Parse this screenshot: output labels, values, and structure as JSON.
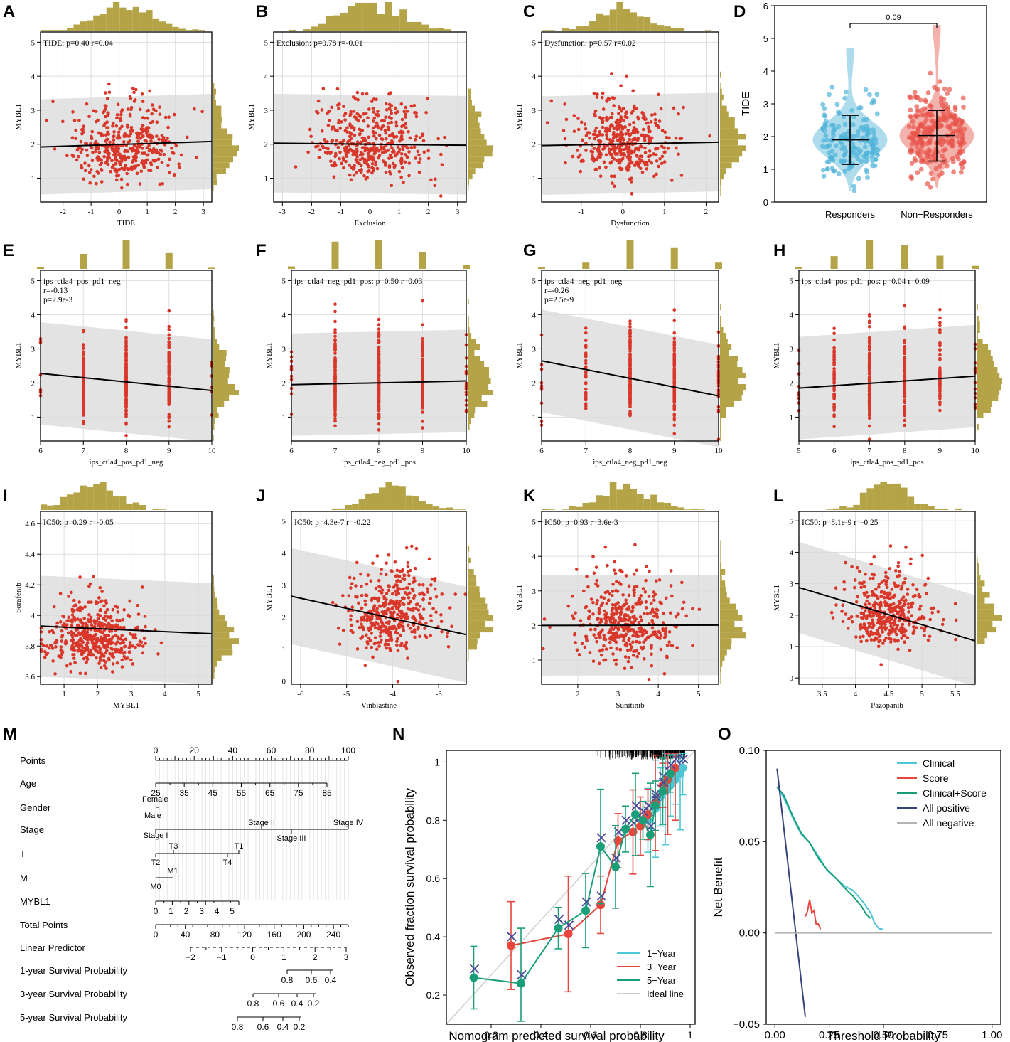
{
  "figure": {
    "colors": {
      "point": "#d9372a",
      "band": "#d9d9d9",
      "hist": "#b5a447",
      "grid": "#dddddd",
      "responders": "#4fb3d9",
      "nonresponders": "#e8564c",
      "cal_1yr": "#4cc7d6",
      "cal_3yr": "#e8453c",
      "cal_5yr": "#1a9e7a",
      "cal_ideal": "#cccccc",
      "cal_cross": "#4a4a9a",
      "dca_all_pos": "#35437a",
      "dca_all_neg": "#b3b3b3"
    }
  },
  "chart_data": [
    {
      "id": "A",
      "panel": "A",
      "type": "scatter",
      "annotation": "TIDE: p=0.40 r=0.04",
      "xlabel": "TIDE",
      "ylabel": "MYBL1",
      "xlim": [
        -2.8,
        3.3
      ],
      "ylim": [
        0.3,
        5.3
      ],
      "xticks": [
        -2,
        -1,
        0,
        1,
        2,
        3
      ],
      "yticks": [
        1,
        2,
        3,
        4,
        5
      ],
      "fit": {
        "x0": -2.8,
        "y0": 1.92,
        "x1": 3.3,
        "y1": 2.08,
        "band": 1.4
      },
      "x_dist": {
        "mean": 0.2,
        "sd": 0.95
      },
      "y_dist": {
        "mean": 1.9,
        "sd": 0.7
      },
      "n": 420,
      "hist_top": true,
      "hist_right": true,
      "discrete_x": []
    },
    {
      "id": "B",
      "panel": "B",
      "type": "scatter",
      "annotation": "Exclusion: p=0.78 r=-0.01",
      "xlabel": "Exclusion",
      "ylabel": "MYBL1",
      "xlim": [
        -3.3,
        3.3
      ],
      "ylim": [
        0.3,
        5.3
      ],
      "xticks": [
        -3,
        -2,
        -1,
        0,
        1,
        2,
        3
      ],
      "yticks": [
        1,
        2,
        3,
        4,
        5
      ],
      "fit": {
        "x0": -3.3,
        "y0": 2.03,
        "x1": 3.3,
        "y1": 1.97,
        "band": 1.45
      },
      "x_dist": {
        "mean": 0.0,
        "sd": 1.0
      },
      "y_dist": {
        "mean": 1.95,
        "sd": 0.7
      },
      "n": 420,
      "hist_top": true,
      "hist_right": true,
      "discrete_x": []
    },
    {
      "id": "C",
      "panel": "C",
      "type": "scatter",
      "annotation": "Dysfunction: p=0.57 r=0.02",
      "xlabel": "Dysfunction",
      "ylabel": "MYBL1",
      "xlim": [
        -1.95,
        2.3
      ],
      "ylim": [
        0.3,
        5.3
      ],
      "xticks": [
        -1,
        0,
        1,
        2
      ],
      "yticks": [
        1,
        2,
        3,
        4,
        5
      ],
      "fit": {
        "x0": -1.95,
        "y0": 1.96,
        "x1": 2.3,
        "y1": 2.06,
        "band": 1.45
      },
      "x_dist": {
        "mean": 0.0,
        "sd": 0.6
      },
      "y_dist": {
        "mean": 1.95,
        "sd": 0.7
      },
      "n": 420,
      "hist_top": true,
      "hist_right": true,
      "discrete_x": []
    },
    {
      "id": "E",
      "panel": "E",
      "type": "scatter",
      "annotation": "ips_ctla4_pos_pd1_neg",
      "annotation2": "r=-0.13",
      "annotation3": "p=2.9e-3",
      "xlabel": "ips_ctla4_pos_pd1_neg",
      "ylabel": "MYBL1",
      "xlim": [
        6,
        10
      ],
      "ylim": [
        0.3,
        5.3
      ],
      "xticks": [
        6,
        7,
        8,
        9,
        10
      ],
      "yticks": [
        1,
        2,
        3,
        4,
        5
      ],
      "fit": {
        "x0": 6,
        "y0": 2.28,
        "x1": 10,
        "y1": 1.78,
        "band": 1.5
      },
      "x_dist": {
        "mean": 8,
        "sd": 1
      },
      "y_dist": {
        "mean": 2.0,
        "sd": 0.75
      },
      "n": 380,
      "hist_top": true,
      "hist_right": true,
      "discrete_x": [
        6,
        7,
        8,
        9,
        10
      ],
      "discrete_w": [
        0.02,
        0.28,
        0.42,
        0.24,
        0.04
      ]
    },
    {
      "id": "F",
      "panel": "F",
      "type": "scatter",
      "annotation": "ips_ctla4_neg_pd1_pos: p=0.50 r=0.03",
      "xlabel": "ips_ctla4_neg_pd1_pos",
      "ylabel": "MYBL1",
      "xlim": [
        6,
        10
      ],
      "ylim": [
        0.3,
        5.3
      ],
      "xticks": [
        6,
        7,
        8,
        9,
        10
      ],
      "yticks": [
        1,
        2,
        3,
        4,
        5
      ],
      "fit": {
        "x0": 6,
        "y0": 1.95,
        "x1": 10,
        "y1": 2.06,
        "band": 1.5
      },
      "x_dist": {
        "mean": 8,
        "sd": 1
      },
      "y_dist": {
        "mean": 2.0,
        "sd": 0.75
      },
      "n": 380,
      "hist_top": true,
      "hist_right": true,
      "discrete_x": [
        6,
        7,
        8,
        9,
        10
      ],
      "discrete_w": [
        0.03,
        0.34,
        0.4,
        0.19,
        0.04
      ]
    },
    {
      "id": "G",
      "panel": "G",
      "type": "scatter",
      "annotation": "ips_ctla4_neg_pd1_neg",
      "annotation2": "r=-0.26",
      "annotation3": "p=2.5e-9",
      "xlabel": "ips_ctla4_neg_pd1_neg",
      "ylabel": "MYBL1",
      "xlim": [
        6,
        10
      ],
      "ylim": [
        0.3,
        5.3
      ],
      "xticks": [
        6,
        7,
        8,
        9,
        10
      ],
      "yticks": [
        1,
        2,
        3,
        4,
        5
      ],
      "fit": {
        "x0": 6,
        "y0": 2.65,
        "x1": 10,
        "y1": 1.62,
        "band": 1.5
      },
      "x_dist": {
        "mean": 8,
        "sd": 1
      },
      "y_dist": {
        "mean": 2.0,
        "sd": 0.75
      },
      "n": 380,
      "hist_top": true,
      "hist_right": true,
      "discrete_x": [
        6,
        7,
        8,
        9,
        10
      ],
      "discrete_w": [
        0.02,
        0.12,
        0.45,
        0.33,
        0.08
      ]
    },
    {
      "id": "H",
      "panel": "H",
      "type": "scatter",
      "annotation": "ips_ctla4_pos_pd1_pos: p=0.04 r=0.09",
      "xlabel": "ips_ctla4_pos_pd1_pos",
      "ylabel": "MYBL1",
      "xlim": [
        5,
        10
      ],
      "ylim": [
        0.3,
        5.3
      ],
      "xticks": [
        5,
        6,
        7,
        8,
        9,
        10
      ],
      "yticks": [
        1,
        2,
        3,
        4,
        5
      ],
      "fit": {
        "x0": 5,
        "y0": 1.85,
        "x1": 10,
        "y1": 2.2,
        "band": 1.5
      },
      "x_dist": {
        "mean": 7.5,
        "sd": 1
      },
      "y_dist": {
        "mean": 2.0,
        "sd": 0.75
      },
      "n": 380,
      "hist_top": true,
      "hist_right": true,
      "discrete_x": [
        5,
        6,
        7,
        8,
        9,
        10
      ],
      "discrete_w": [
        0.02,
        0.14,
        0.38,
        0.3,
        0.14,
        0.02
      ]
    },
    {
      "id": "I",
      "panel": "I",
      "type": "scatter",
      "annotation": "IC50: p=0.29 r=-0.05",
      "xlabel": "MYBL1",
      "ylabel": "Sorafenib",
      "xlim": [
        0.3,
        5.4
      ],
      "ylim": [
        3.55,
        4.68
      ],
      "xticks": [
        1,
        2,
        3,
        4,
        5
      ],
      "yticks": [
        3.6,
        3.8,
        4.0,
        4.2,
        4.4,
        4.6
      ],
      "fit": {
        "x0": 0.3,
        "y0": 3.93,
        "x1": 5.4,
        "y1": 3.88,
        "band": 0.33
      },
      "x_dist": {
        "mean": 1.9,
        "sd": 0.75
      },
      "y_dist": {
        "mean": 3.85,
        "sd": 0.13
      },
      "n": 460,
      "hist_top": true,
      "hist_right": true,
      "discrete_x": []
    },
    {
      "id": "J",
      "panel": "J",
      "type": "scatter",
      "annotation": "IC50: p=4.3e-7 r=-0.22",
      "xlabel": "Vinblastine",
      "ylabel": "MYBL1",
      "xlim": [
        -6.2,
        -2.4
      ],
      "ylim": [
        -0.1,
        5.3
      ],
      "xticks": [
        -6,
        -5,
        -4,
        -3
      ],
      "yticks": [
        0,
        1,
        2,
        3,
        4,
        5
      ],
      "fit": {
        "x0": -6.2,
        "y0": 2.65,
        "x1": -2.4,
        "y1": 1.45,
        "band": 1.5
      },
      "x_dist": {
        "mean": -4.0,
        "sd": 0.5
      },
      "y_dist": {
        "mean": 2.0,
        "sd": 0.75
      },
      "n": 420,
      "hist_top": true,
      "hist_right": true,
      "discrete_x": []
    },
    {
      "id": "K",
      "panel": "K",
      "type": "scatter",
      "annotation": "IC50: p=0.93 r=3.6e-3",
      "xlabel": "Sunitinib",
      "ylabel": "MYBL1",
      "xlim": [
        1.1,
        5.5
      ],
      "ylim": [
        0.3,
        5.3
      ],
      "xticks": [
        2,
        3,
        4,
        5
      ],
      "yticks": [
        1,
        2,
        3,
        4,
        5
      ],
      "fit": {
        "x0": 1.1,
        "y0": 2.0,
        "x1": 5.5,
        "y1": 2.01,
        "band": 1.45
      },
      "x_dist": {
        "mean": 3.2,
        "sd": 0.65
      },
      "y_dist": {
        "mean": 2.0,
        "sd": 0.75
      },
      "n": 420,
      "hist_top": true,
      "hist_right": true,
      "discrete_x": []
    },
    {
      "id": "L",
      "panel": "L",
      "type": "scatter",
      "annotation": "IC50: p=8.1e-9 r=-0.25",
      "xlabel": "Pazopanib",
      "ylabel": "MYBL1",
      "xlim": [
        3.15,
        5.8
      ],
      "ylim": [
        -0.2,
        5.3
      ],
      "xticks": [
        3.5,
        4.0,
        4.5,
        5.0,
        5.5
      ],
      "yticks": [
        0,
        1,
        2,
        3,
        4,
        5
      ],
      "fit": {
        "x0": 3.15,
        "y0": 2.88,
        "x1": 5.8,
        "y1": 1.18,
        "band": 1.45
      },
      "x_dist": {
        "mean": 4.5,
        "sd": 0.3
      },
      "y_dist": {
        "mean": 2.0,
        "sd": 0.75
      },
      "n": 420,
      "hist_top": true,
      "hist_right": true,
      "discrete_x": []
    },
    {
      "id": "D",
      "panel": "D",
      "type": "violin",
      "ylabel": "TIDE",
      "ylim": [
        0,
        6
      ],
      "yticks": [
        0,
        1,
        2,
        3,
        4,
        5,
        6
      ],
      "categories": [
        "Responders",
        "Non−Responders"
      ],
      "groups": [
        {
          "name": "Responders",
          "mean": 1.9,
          "sd_low": 1.15,
          "sd_high": 2.65,
          "min": 0.35,
          "max": 4.7,
          "n": 170
        },
        {
          "name": "Non−Responders",
          "mean": 2.03,
          "sd_low": 1.25,
          "sd_high": 2.8,
          "min": 0.45,
          "max": 5.4,
          "n": 260
        }
      ],
      "comparison_p": "0.09"
    },
    {
      "id": "M",
      "panel": "M",
      "type": "nomogram",
      "rows": [
        {
          "label": "Points",
          "ticks": [
            0,
            10,
            20,
            30,
            40,
            50,
            60,
            70,
            80,
            90,
            100
          ],
          "labels": [
            "0",
            "20",
            "40",
            "60",
            "80",
            "100"
          ]
        },
        {
          "label": "Age",
          "ticks": [
            25,
            35,
            45,
            55,
            65,
            75,
            85
          ],
          "labels": [
            "25",
            "35",
            "45",
            "55",
            "65",
            "75",
            "85"
          ]
        },
        {
          "label": "Gender",
          "labels": [
            "Female",
            "Male"
          ]
        },
        {
          "label": "Stage",
          "labels": [
            "Stage I",
            "Stage II",
            "Stage III",
            "Stage IV"
          ]
        },
        {
          "label": "T",
          "labels": [
            "T2",
            "T3",
            "T4",
            "T1"
          ]
        },
        {
          "label": "M",
          "labels": [
            "M0",
            "M1"
          ]
        },
        {
          "label": "MYBL1",
          "labels": [
            "0",
            "1",
            "2",
            "3",
            "4",
            "5"
          ]
        },
        {
          "label": "Total Points",
          "labels": [
            "0",
            "40",
            "80",
            "120",
            "160",
            "200",
            "240"
          ]
        },
        {
          "label": "Linear Predictor",
          "labels": [
            "−2",
            "−1",
            "0",
            "1",
            "2",
            "3"
          ]
        },
        {
          "label": "1-year Survival Probability",
          "labels": [
            "0.8",
            "0.6",
            "0.4"
          ]
        },
        {
          "label": "3-year Survival Probability",
          "labels": [
            "0.8",
            "0.6",
            "0.4",
            "0.2"
          ]
        },
        {
          "label": "5-year Survival Probability",
          "labels": [
            "0.8",
            "0.6",
            "0.4",
            "0.2"
          ]
        }
      ]
    },
    {
      "id": "N",
      "panel": "N",
      "type": "line",
      "xlabel": "Nomogram predicted survival probability",
      "ylabel": "Observed fraction survival probability",
      "xlim": [
        0.02,
        1.02
      ],
      "ylim": [
        0.1,
        1.04
      ],
      "xticks": [
        0.2,
        0.4,
        0.6,
        0.8,
        1.0
      ],
      "yticks": [
        0.2,
        0.4,
        0.6,
        0.8,
        1.0
      ],
      "series": [
        {
          "name": "1−Year",
          "x": [
            0.83,
            0.86,
            0.88,
            0.9,
            0.92,
            0.94,
            0.96,
            0.97
          ],
          "y": [
            0.8,
            0.84,
            0.88,
            0.9,
            0.92,
            0.94,
            0.96,
            0.98
          ]
        },
        {
          "name": "3−Year",
          "x": [
            0.28,
            0.51,
            0.64,
            0.71,
            0.77,
            0.8,
            0.83,
            0.86,
            0.89,
            0.91,
            0.94
          ],
          "y": [
            0.37,
            0.41,
            0.51,
            0.73,
            0.76,
            0.78,
            0.82,
            0.86,
            0.92,
            0.94,
            0.98
          ]
        },
        {
          "name": "5−Year",
          "x": [
            0.13,
            0.32,
            0.47,
            0.58,
            0.64,
            0.7,
            0.74,
            0.78,
            0.81,
            0.84,
            0.86,
            0.89,
            0.92
          ],
          "y": [
            0.26,
            0.24,
            0.43,
            0.49,
            0.71,
            0.64,
            0.77,
            0.82,
            0.8,
            0.75,
            0.85,
            0.9,
            0.96
          ]
        }
      ],
      "ideal_label": "Ideal line"
    },
    {
      "id": "O",
      "panel": "O",
      "type": "line",
      "xlabel": "Threshold Probability",
      "ylabel": "Net Benefit",
      "xlim": [
        -0.04,
        1.04
      ],
      "ylim": [
        -0.05,
        0.1
      ],
      "xticks": [
        0.0,
        0.25,
        0.5,
        0.75,
        1.0
      ],
      "xticklabels": [
        "0.00",
        "0.25",
        "0.50",
        "0.75",
        "1.00"
      ],
      "yticks": [
        -0.05,
        0.0,
        0.05,
        0.1
      ],
      "yticklabels": [
        "−0.05",
        "0.00",
        "0.05",
        "0.10"
      ],
      "series": [
        {
          "name": "Clinical",
          "x": [
            0.01,
            0.04,
            0.08,
            0.12,
            0.16,
            0.2,
            0.24,
            0.28,
            0.32,
            0.36,
            0.4,
            0.44,
            0.46,
            0.48,
            0.5
          ],
          "y": [
            0.08,
            0.074,
            0.063,
            0.055,
            0.05,
            0.043,
            0.035,
            0.031,
            0.026,
            0.022,
            0.017,
            0.012,
            0.006,
            0.002,
            0.002
          ]
        },
        {
          "name": "Score",
          "x": [
            0.14,
            0.15,
            0.16,
            0.17,
            0.18,
            0.19,
            0.2,
            0.21
          ],
          "y": [
            0.009,
            0.013,
            0.018,
            0.012,
            0.011,
            0.006,
            0.004,
            0.002
          ]
        },
        {
          "name": "Clinical+Score",
          "x": [
            0.01,
            0.04,
            0.08,
            0.12,
            0.16,
            0.2,
            0.24,
            0.28,
            0.32,
            0.36,
            0.4,
            0.42,
            0.44
          ],
          "y": [
            0.08,
            0.075,
            0.064,
            0.056,
            0.049,
            0.041,
            0.034,
            0.029,
            0.024,
            0.019,
            0.014,
            0.011,
            0.008
          ]
        },
        {
          "name": "All positive",
          "x": [
            0.01,
            0.14
          ],
          "y": [
            0.09,
            -0.046
          ]
        },
        {
          "name": "All negative",
          "x": [
            0.0,
            1.0
          ],
          "y": [
            0.0,
            0.0
          ]
        }
      ]
    }
  ]
}
